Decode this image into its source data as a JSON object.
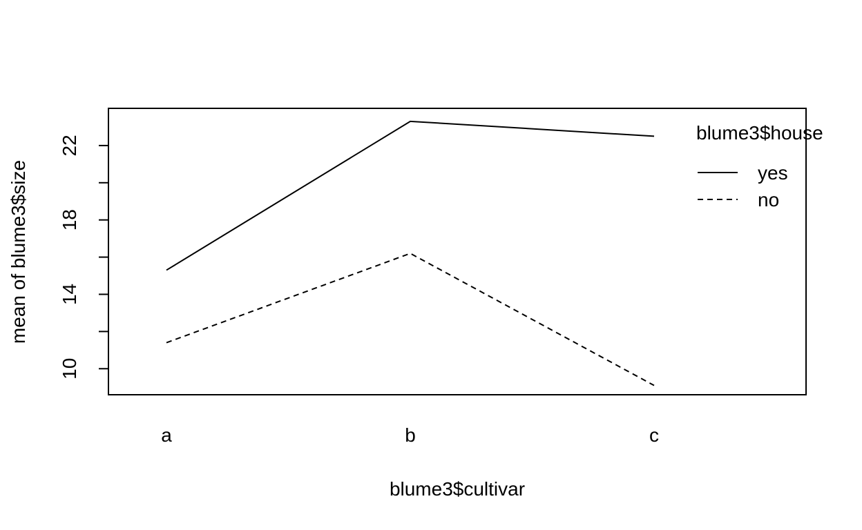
{
  "chart_data": {
    "type": "line",
    "title": "",
    "xlabel": "blume3$cultivar",
    "ylabel": "mean of  blume3$size",
    "categories": [
      "a",
      "b",
      "c"
    ],
    "ylim": [
      8.6,
      24.0
    ],
    "yticks": [
      10,
      14,
      18,
      22
    ],
    "yticks_minor": [
      12,
      16,
      20
    ],
    "grid": false,
    "legend": {
      "title": "blume3$house",
      "placement": "top-right"
    },
    "series": [
      {
        "name": "yes",
        "line_style": "solid",
        "values": [
          15.3,
          23.3,
          22.5
        ]
      },
      {
        "name": "no",
        "line_style": "dashed",
        "values": [
          11.4,
          16.2,
          9.1
        ]
      }
    ],
    "colors": {
      "line": "#000000",
      "background": "#ffffff"
    }
  }
}
